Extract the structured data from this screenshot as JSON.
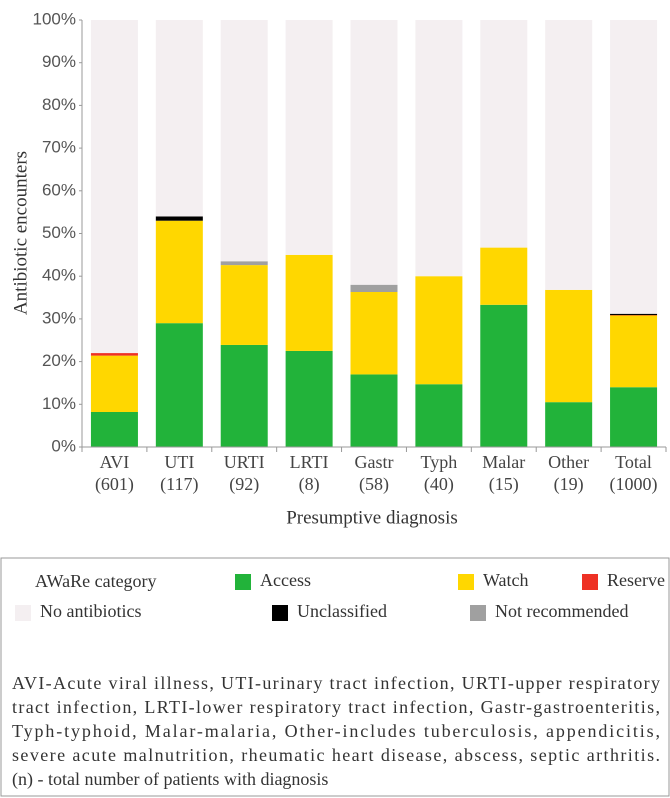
{
  "chart_data": {
    "type": "stacked_bar",
    "ylabel": "Antibiotic encounters",
    "xlabel": "Presumptive diagnosis",
    "categories": [
      "AVI (601)",
      "UTI (117)",
      "URTI (92)",
      "LRTI (8)",
      "Gastr (58)",
      "Typh (40)",
      "Malar (15)",
      "Other (19)",
      "Total (1000)"
    ],
    "series": [
      {
        "name": "Access",
        "color": "#22b33a",
        "values": [
          8.2,
          29,
          23.9,
          22.5,
          17,
          14.7,
          33.3,
          10.5,
          14
        ]
      },
      {
        "name": "Watch",
        "color": "#ffd700",
        "values": [
          13.2,
          24,
          18.7,
          22.5,
          19.3,
          25.3,
          13.4,
          26.3,
          16.8
        ]
      },
      {
        "name": "Reserve",
        "color": "#ee3124",
        "values": [
          0.6,
          0,
          0,
          0,
          0,
          0,
          0,
          0,
          0.1
        ]
      },
      {
        "name": "Not recommended",
        "color": "#a0a0a0",
        "values": [
          0,
          0,
          0.9,
          0,
          1.7,
          0,
          0,
          0,
          0
        ]
      },
      {
        "name": "Unclassified",
        "color": "#000000",
        "values": [
          0,
          1,
          0,
          0,
          0,
          0,
          0,
          0,
          0.3
        ]
      },
      {
        "name": "No antibiotics",
        "color": "#f4eff1",
        "values": [
          78,
          46,
          56.5,
          55,
          62,
          60,
          53.3,
          63.2,
          68.8
        ]
      }
    ],
    "ylim": [
      0,
      100
    ],
    "yticks": [
      {
        "value": 0,
        "label": "0%"
      },
      {
        "value": 10,
        "label": "10%"
      },
      {
        "value": 20,
        "label": "20%"
      },
      {
        "value": 30,
        "label": "30%"
      },
      {
        "value": 40,
        "label": "40%"
      },
      {
        "value": 50,
        "label": "50%"
      },
      {
        "value": 60,
        "label": "60%"
      },
      {
        "value": 70,
        "label": "70%"
      },
      {
        "value": 80,
        "label": "80%"
      },
      {
        "value": 90,
        "label": "90%"
      },
      {
        "value": 100,
        "label": "100%"
      }
    ],
    "legend_title": "AWaRe category",
    "footnote": [
      "AVI-Acute viral illness, UTI-urinary tract infection, URTI-upper respiratory",
      "tract infection, LRTI-lower respiratory tract infection, Gastr-gastroenteritis,",
      "Typh-typhoid, Malar-malaria, Other-includes tuberculosis, appendicitis,",
      "severe acute malnutrition, rheumatic heart disease, abscess, septic arthritis.",
      "(n) - total number of patients with diagnosis"
    ]
  }
}
